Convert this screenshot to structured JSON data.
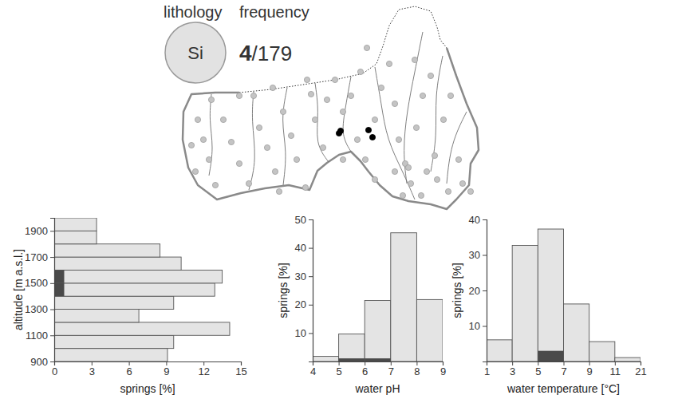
{
  "header": {
    "lithology_label": "lithology",
    "frequency_label": "frequency",
    "lithology": "Si",
    "count": "4",
    "total": "/179"
  },
  "chart_data": [
    {
      "type": "scatter",
      "tick_labels": false,
      "marker": "circle",
      "xlim": [
        0,
        380
      ],
      "ylim": [
        0,
        270
      ],
      "series": [
        {
          "color": "#c4c4c4",
          "x": [
            28,
            35,
            42,
            25,
            50,
            60,
            70,
            80,
            92,
            105,
            115,
            98,
            125,
            135,
            145,
            152,
            163,
            170,
            175,
            185,
            190,
            200,
            210,
            220,
            232,
            228,
            238,
            250,
            258,
            268,
            275,
            280,
            288,
            295,
            302,
            310,
            320,
            325,
            328,
            336,
            342,
            355,
            360,
            308,
            285,
            275,
            250,
            165,
            122,
            80,
            45,
            20,
            130,
            210,
            240,
            300,
            345,
            370,
            292,
            315
          ],
          "values": [
            120,
            95,
            70,
            55,
            38,
            120,
            92,
            65,
            40,
            110,
            85,
            150,
            55,
            130,
            100,
            70,
            35,
            152,
            120,
            85,
            145,
            170,
            130,
            150,
            180,
            95,
            70,
            120,
            160,
            190,
            140,
            95,
            65,
            40,
            110,
            150,
            175,
            75,
            45,
            120,
            30,
            70,
            40,
            25,
            25,
            55,
            45,
            170,
            160,
            150,
            145,
            88,
            30,
            70,
            210,
            195,
            150,
            30,
            60,
            55
          ]
        },
        {
          "color": "#000000",
          "x": [
            205,
            207,
            242,
            247
          ],
          "values": [
            103,
            106,
            107,
            98
          ]
        }
      ]
    },
    {
      "type": "histogram",
      "orientation": "horizontal",
      "stacked": false,
      "bins": [
        900,
        1000,
        1100,
        1200,
        1300,
        1400,
        1500,
        1600,
        1700,
        1800,
        1900,
        2000
      ],
      "series": [
        {
          "color": "#e4e4e4",
          "values": [
            9.1,
            9.6,
            14.1,
            6.8,
            9.6,
            12.9,
            13.5,
            10.2,
            8.5,
            3.4,
            3.4
          ]
        },
        {
          "color": "#4a4a4a",
          "values": [
            0,
            0,
            0,
            0,
            0,
            0.8,
            0.8,
            0,
            0,
            0,
            0
          ]
        }
      ],
      "xlim": [
        0,
        15
      ],
      "xticks": [
        0,
        3,
        6,
        9,
        12,
        15
      ],
      "ylim": [
        900,
        2000
      ],
      "yticks": [
        900,
        1100,
        1300,
        1500,
        1700,
        1900
      ],
      "x_label": "springs [%]",
      "y_label": "altitude [m a.s.l.]"
    },
    {
      "type": "histogram",
      "stacked": false,
      "bins": [
        4,
        5,
        6,
        7,
        8,
        9
      ],
      "series": [
        {
          "color": "#e4e4e4",
          "values": [
            1.8,
            9.7,
            21.5,
            45.3,
            21.8
          ]
        },
        {
          "color": "#4a4a4a",
          "values": [
            0,
            1.1,
            1.1,
            0,
            0
          ]
        }
      ],
      "xlim": [
        4,
        9
      ],
      "xticks": [
        4,
        5,
        6,
        7,
        8,
        9
      ],
      "ylim": [
        0,
        50
      ],
      "yticks": [
        10,
        20,
        30,
        40,
        50
      ],
      "x_label": "water pH",
      "y_label": "springs [%]"
    },
    {
      "type": "histogram",
      "stacked": false,
      "bins": [
        1,
        3,
        5,
        7,
        9,
        11,
        21
      ],
      "series": [
        {
          "color": "#e4e4e4",
          "values": [
            6.1,
            32.7,
            37.3,
            16.2,
            5.6,
            1.1
          ]
        },
        {
          "color": "#4a4a4a",
          "values": [
            0,
            0,
            3.0,
            0,
            0,
            0
          ]
        }
      ],
      "xlim": [
        1,
        21
      ],
      "xticks": [
        1,
        3,
        5,
        7,
        9,
        11,
        21
      ],
      "ylim": [
        0,
        40
      ],
      "yticks": [
        10,
        20,
        30,
        40
      ],
      "x_label": "water temperature [°C]",
      "y_label": "springs [%]"
    }
  ]
}
